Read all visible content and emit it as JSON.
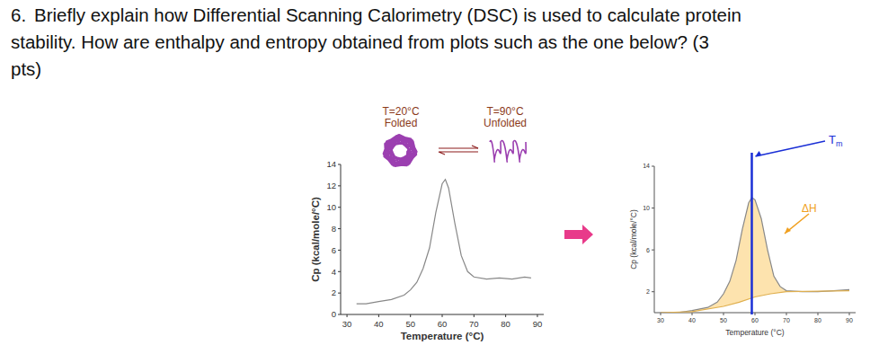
{
  "question": {
    "number": "6.",
    "lines": [
      "Briefly explain how Differential Scanning Calorimetry (DSC) is used to calculate protein",
      "stability. How are enthalpy and entropy obtained from plots such as the one below? (3",
      "pts)"
    ]
  },
  "chart_data": [
    {
      "type": "line",
      "x_label": "Temperature (°C)",
      "y_label": "Cp (kcal/mole/°C)",
      "xlim": [
        28,
        92
      ],
      "ylim": [
        0,
        14
      ],
      "xticks": [
        30,
        40,
        50,
        60,
        70,
        80,
        90
      ],
      "yticks": [
        0,
        2,
        4,
        6,
        8,
        10,
        12,
        14
      ],
      "annotations": [
        {
          "text": "T=20°C"
        },
        {
          "text": "Folded"
        },
        {
          "text": "T=90°C"
        },
        {
          "text": "Unfolded"
        }
      ],
      "series": [
        {
          "color": "#888888",
          "x": [
            33,
            36,
            40,
            44,
            48,
            50,
            52,
            54,
            56,
            58,
            60,
            61,
            62,
            64,
            66,
            68,
            70,
            74,
            78,
            82,
            86,
            88
          ],
          "values": [
            1,
            1,
            1.2,
            1.4,
            1.8,
            2.3,
            3,
            4.3,
            6.2,
            9.5,
            12.2,
            12.6,
            11.8,
            8.5,
            5.5,
            4,
            3.5,
            3.3,
            3.4,
            3.3,
            3.5,
            3.4
          ]
        }
      ]
    },
    {
      "type": "line",
      "x_label": "Temperature (°C)",
      "y_label": "Cp (kcal/mole/°C)",
      "xlim": [
        28,
        92
      ],
      "ylim": [
        0,
        14
      ],
      "xticks": [
        30,
        40,
        50,
        60,
        70,
        80,
        90
      ],
      "yticks": [
        2,
        6,
        10,
        14
      ],
      "annotations": [
        {
          "text": "T",
          "subscript": "m",
          "x": 59,
          "color": "#1a2fd6"
        },
        {
          "text": "ΔH",
          "color": "#f0a020"
        }
      ],
      "series": [
        {
          "color": "#888888",
          "x": [
            30,
            35,
            40,
            45,
            48,
            50,
            52,
            54,
            56,
            58,
            59,
            60,
            62,
            64,
            66,
            68,
            70,
            75,
            80,
            85,
            90
          ],
          "values": [
            0,
            0,
            0.2,
            0.5,
            1,
            1.8,
            3,
            5,
            8,
            10.5,
            11,
            10.8,
            9,
            6,
            3.5,
            2.5,
            2.1,
            2,
            2,
            2.1,
            2.2
          ]
        },
        {
          "color": "#e0b050",
          "x": [
            30,
            40,
            50,
            55,
            60,
            65,
            70,
            90
          ],
          "values": [
            0,
            0.1,
            0.6,
            1,
            1.5,
            1.8,
            2,
            2.1
          ]
        }
      ]
    }
  ]
}
